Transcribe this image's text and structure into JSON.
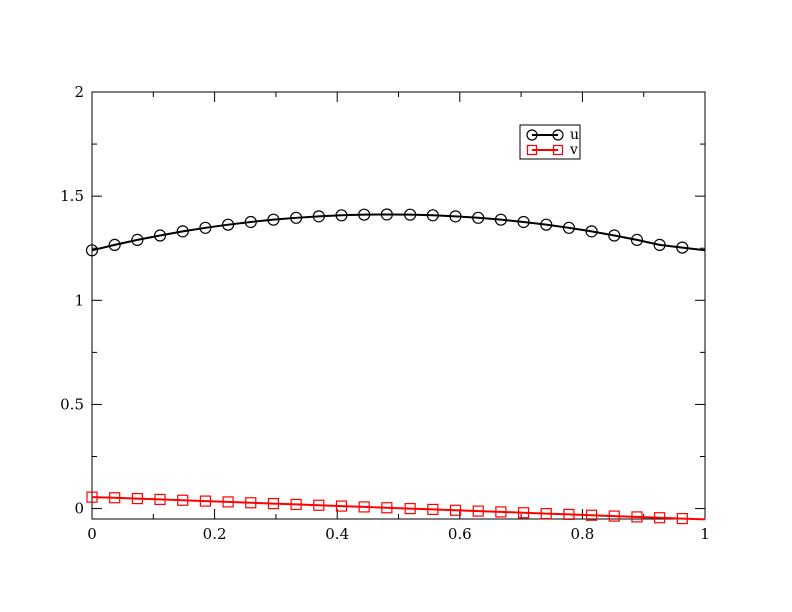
{
  "chart_data": {
    "type": "line",
    "title": "",
    "xlabel": "",
    "ylabel": "",
    "xlim": [
      0,
      1
    ],
    "ylim": [
      -0.05,
      2
    ],
    "x_ticks": [
      0,
      0.2,
      0.4,
      0.6,
      0.8,
      1
    ],
    "x_tick_labels": [
      "0",
      "0.2",
      "0.4",
      "0.6",
      "0.8",
      "1"
    ],
    "y_ticks": [
      0,
      0.5,
      1,
      1.5,
      2
    ],
    "y_tick_labels": [
      "0",
      "0.5",
      "1",
      "1.5",
      "2"
    ],
    "grid": false,
    "legend_position": "top-right",
    "series": [
      {
        "name": "u",
        "color": "#000000",
        "marker": "circle",
        "x": [
          0,
          0.037,
          0.074,
          0.111,
          0.148,
          0.185,
          0.222,
          0.259,
          0.296,
          0.333,
          0.37,
          0.407,
          0.444,
          0.481,
          0.519,
          0.556,
          0.593,
          0.63,
          0.667,
          0.704,
          0.741,
          0.778,
          0.815,
          0.852,
          0.889,
          0.926,
          0.963,
          1.0
        ],
        "y": [
          1.24,
          1.266,
          1.29,
          1.311,
          1.331,
          1.348,
          1.363,
          1.376,
          1.387,
          1.396,
          1.403,
          1.408,
          1.411,
          1.412,
          1.411,
          1.408,
          1.403,
          1.396,
          1.387,
          1.376,
          1.363,
          1.348,
          1.331,
          1.311,
          1.29,
          1.266,
          1.253,
          1.24
        ]
      },
      {
        "name": "v",
        "color": "#ff0000",
        "marker": "square",
        "x": [
          0,
          0.037,
          0.074,
          0.111,
          0.148,
          0.185,
          0.222,
          0.259,
          0.296,
          0.333,
          0.37,
          0.407,
          0.444,
          0.481,
          0.519,
          0.556,
          0.593,
          0.63,
          0.667,
          0.704,
          0.741,
          0.778,
          0.815,
          0.852,
          0.889,
          0.926,
          0.963,
          1.0
        ],
        "y": [
          0.055,
          0.052,
          0.048,
          0.044,
          0.04,
          0.036,
          0.032,
          0.028,
          0.024,
          0.02,
          0.016,
          0.012,
          0.008,
          0.004,
          0.0,
          -0.004,
          -0.008,
          -0.012,
          -0.016,
          -0.02,
          -0.024,
          -0.028,
          -0.032,
          -0.036,
          -0.04,
          -0.044,
          -0.048,
          -0.052
        ]
      }
    ]
  }
}
